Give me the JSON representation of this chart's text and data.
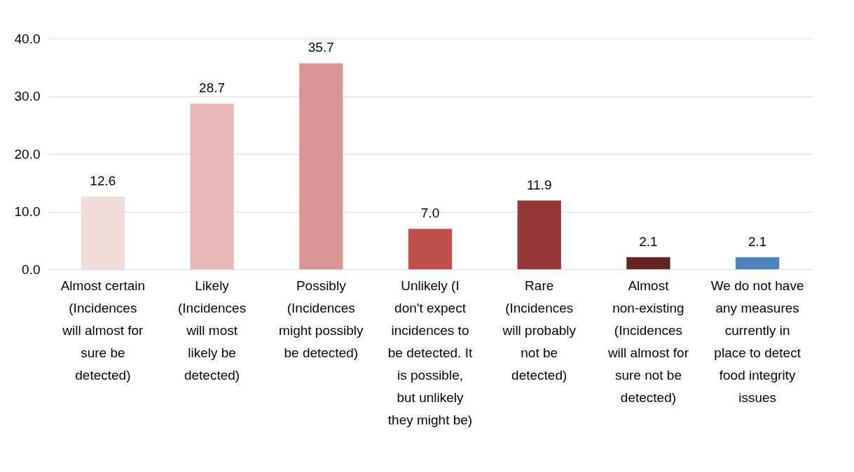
{
  "chart_data": {
    "type": "bar",
    "categories": [
      "Almost certain (Incidences will almost for sure be detected)",
      "Likely (Incidences will most likely be detected)",
      "Possibly (Incidences might possibly be detected)",
      "Unlikely (I don't expect incidences to be detected. It is possible, but unlikely they might be)",
      "Rare (Incidences will probably not be detected)",
      "Almost non-existing (Incidences will almost for sure not be detected)",
      "We do not have any measures currently in place to detect food integrity issues"
    ],
    "values": [
      12.6,
      28.7,
      35.7,
      7.0,
      11.9,
      2.1,
      2.1
    ],
    "value_labels": [
      "12.6",
      "28.7",
      "35.7",
      "7.0",
      "11.9",
      "2.1",
      "2.1"
    ],
    "colors": [
      "#f2dcdb",
      "#e6b9b8",
      "#d99694",
      "#c0504d",
      "#953735",
      "#632523",
      "#4f81bd"
    ],
    "ylim": [
      0,
      40
    ],
    "yticks": [
      {
        "value": 0,
        "label": "0.0"
      },
      {
        "value": 10,
        "label": "10.0"
      },
      {
        "value": 20,
        "label": "20.0"
      },
      {
        "value": 30,
        "label": "30.0"
      },
      {
        "value": 40,
        "label": "40.0"
      }
    ],
    "grid": "y"
  }
}
